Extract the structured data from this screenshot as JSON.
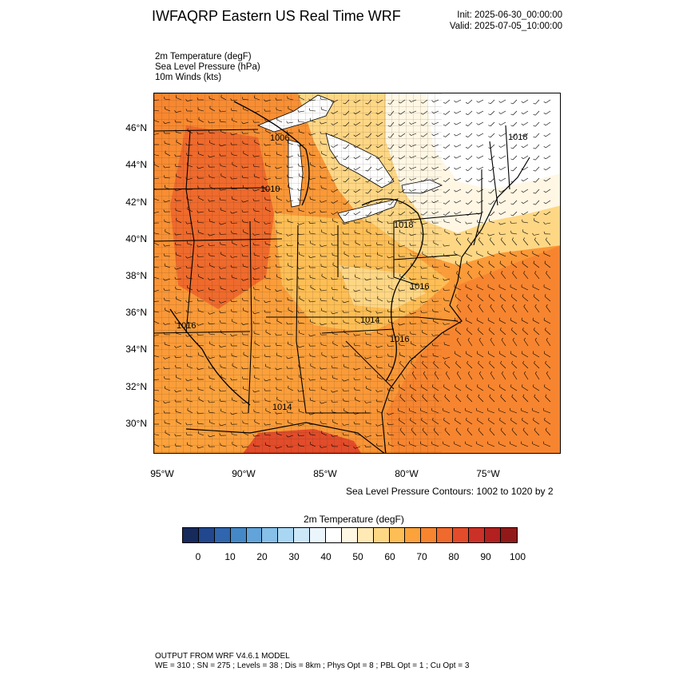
{
  "header": {
    "title": "IWFAQRP Eastern US Real Time WRF",
    "init": "Init: 2025-06-30_00:00:00",
    "valid": "Valid: 2025-07-05_10:00:00"
  },
  "fields": [
    "2m Temperature   (degF)",
    "Sea Level Pressure   (hPa)",
    "10m Winds   (kts)"
  ],
  "map": {
    "lat_labels": [
      "46°N",
      "44°N",
      "42°N",
      "40°N",
      "38°N",
      "36°N",
      "34°N",
      "32°N",
      "30°N"
    ],
    "lon_labels": [
      "95°W",
      "90°W",
      "85°W",
      "80°W",
      "75°W"
    ],
    "pressure_labels": [
      "1006",
      "1010",
      "1018",
      "1018",
      "1016",
      "1014",
      "1016",
      "1016",
      "1014"
    ],
    "contour_note": "Sea Level Pressure Contours: 1002 to 1020 by 2"
  },
  "colorbar": {
    "title": "2m Temperature  (degF)",
    "ticks": [
      "0",
      "10",
      "20",
      "30",
      "40",
      "50",
      "60",
      "70",
      "80",
      "90",
      "100"
    ],
    "colors": [
      "#162a5c",
      "#21478e",
      "#2f66ae",
      "#4588c8",
      "#62a4da",
      "#86bfe8",
      "#a9d6f3",
      "#cce7f8",
      "#ebf5fc",
      "#ffffff",
      "#fff7e4",
      "#ffeab6",
      "#fed785",
      "#fdbe55",
      "#fba23c",
      "#f7852f",
      "#ef6a2c",
      "#e24c2a",
      "#cc3127",
      "#b2201f",
      "#911a19"
    ]
  },
  "footer": {
    "line1": "OUTPUT FROM WRF V4.6.1 MODEL",
    "line2": "WE = 310 ; SN = 275 ; Levels = 38 ; Dis = 8km ; Phys Opt = 8 ; PBL Opt = 1 ; Cu Opt = 3"
  }
}
